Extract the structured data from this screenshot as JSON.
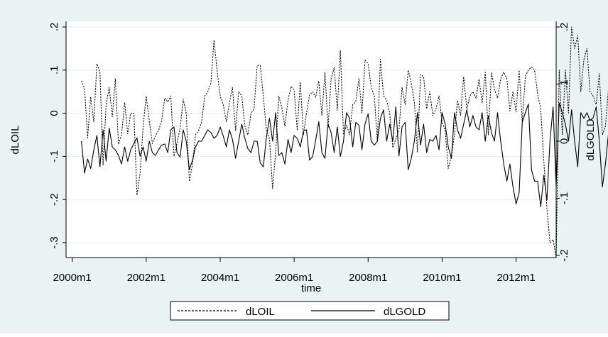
{
  "chart_data": {
    "type": "line",
    "title": "",
    "xlabel": "time",
    "ylabel_left": "dLOIL",
    "ylabel_right": "dLGOLD",
    "x_start": "2000m4",
    "x_end": "2012m9",
    "x_ticks": [
      "2000m1",
      "2002m1",
      "2004m1",
      "2006m1",
      "2008m1",
      "2010m1",
      "2012m1"
    ],
    "y_left_ticks": [
      ".2",
      ".1",
      "0",
      "-.1",
      "-.2",
      "-.3"
    ],
    "y_left_range": [
      -0.33,
      0.2
    ],
    "y_right_ticks": [
      ".2",
      ".1",
      "0",
      "-.1",
      "-.2"
    ],
    "y_right_range": [
      -0.2,
      0.2
    ],
    "grid": true,
    "legend_position": "bottom",
    "series": [
      {
        "name": "dLOIL",
        "axis": "left",
        "style": "dashed",
        "values": [
          0.075,
          0.058,
          -0.057,
          0.038,
          -0.02,
          0.115,
          0.096,
          -0.12,
          0.02,
          0.06,
          -0.008,
          0.08,
          -0.072,
          -0.05,
          0.025,
          -0.048,
          0.0,
          0.0,
          -0.19,
          -0.14,
          -0.03,
          0.04,
          -0.018,
          -0.07,
          -0.053,
          -0.04,
          -0.018,
          0.035,
          0.026,
          0.04,
          -0.1,
          -0.07,
          -0.035,
          0.032,
          0.0,
          -0.158,
          -0.12,
          -0.05,
          -0.04,
          -0.02,
          0.04,
          0.05,
          0.07,
          0.17,
          0.1,
          0.04,
          0.02,
          -0.02,
          0.025,
          0.06,
          -0.04,
          0.05,
          0.04,
          -0.03,
          -0.05,
          0.0,
          0.01,
          0.111,
          0.111,
          0.04,
          -0.04,
          -0.06,
          -0.175,
          -0.09,
          0.04,
          0.013,
          -0.03,
          0.03,
          0.062,
          0.054,
          -0.04,
          0.073,
          -0.05,
          0.0,
          0.042,
          0.05,
          0.037,
          0.075,
          -0.005,
          0.095,
          -0.033,
          0.08,
          0.106,
          0.007,
          0.145,
          -0.05,
          -0.028,
          -0.05,
          0.02,
          0.027,
          0.08,
          0.0,
          0.123,
          0.115,
          0.06,
          0.04,
          -0.065,
          0.125,
          0.04,
          0.03,
          0.0,
          -0.08,
          -0.06,
          -0.04,
          0.06,
          0.02,
          0.1,
          0.07,
          0.025,
          -0.09,
          0.09,
          0.085,
          0.01,
          0.05,
          -0.006,
          0.01,
          0.04,
          -0.02,
          -0.04,
          -0.128,
          -0.1,
          -0.05,
          0.03,
          -0.005,
          0.085,
          0.01,
          0.04,
          0.05,
          0.035,
          0.079,
          0.023,
          0.095,
          -0.05,
          0.095,
          0.055,
          0.035,
          0.08,
          0.095,
          0.08,
          0.005,
          0.05,
          0.003,
          0.1,
          -0.02,
          0.085,
          0.1,
          0.107,
          0.1,
          0.044,
          0.01,
          -0.11,
          -0.22,
          -0.3,
          -0.293,
          -0.335,
          0.1,
          -0.05,
          0.1,
          0.0,
          0.2,
          0.15,
          0.18,
          0.05,
          0.125,
          0.15,
          0.05,
          0.04,
          0.02,
          0.092,
          -0.05,
          -0.03,
          0.06,
          0.05,
          -0.08,
          0.02,
          -0.02,
          0.05,
          0.0,
          0.05,
          0.02,
          0.015,
          0.042,
          -0.02,
          0.025,
          -0.05,
          0.0,
          0.063,
          0.08,
          0.07,
          0.053,
          -0.05,
          -0.06,
          0.0,
          0.013,
          -0.05,
          0.061,
          0.0,
          0.08,
          0.125,
          0.056,
          -0.03,
          0.083,
          0.158,
          0.0,
          -0.05,
          0.08,
          -0.12,
          -0.08,
          -0.063,
          -0.04,
          0.0,
          -0.14,
          -0.13,
          0.01,
          0.063
        ]
      },
      {
        "name": "dLGOLD",
        "axis": "right",
        "style": "solid",
        "values": [
          0.0,
          -0.056,
          -0.031,
          -0.048,
          -0.015,
          0.01,
          -0.045,
          0.02,
          -0.035,
          0.023,
          -0.01,
          -0.015,
          -0.025,
          -0.04,
          -0.01,
          -0.035,
          -0.015,
          -0.004,
          0.006,
          -0.026,
          -0.01,
          -0.035,
          0.0,
          -0.02,
          -0.025,
          -0.015,
          -0.007,
          -0.005,
          -0.02,
          0.02,
          0.025,
          -0.02,
          -0.028,
          0.02,
          0.0,
          -0.05,
          -0.034,
          -0.01,
          0.0,
          0.0,
          0.01,
          0.02,
          0.015,
          0.005,
          0.01,
          0.025,
          0.009,
          -0.01,
          0.02,
          0.003,
          -0.03,
          0.0,
          0.03,
          0.005,
          -0.013,
          -0.02,
          0.0,
          0.0,
          -0.038,
          -0.045,
          0.007,
          0.04,
          0.0,
          0.05,
          -0.025,
          -0.02,
          -0.04,
          0.003,
          -0.02,
          0.01,
          0.005,
          -0.01,
          0.018,
          0.02,
          -0.033,
          -0.027,
          0.002,
          0.034,
          -0.02,
          -0.03,
          0.03,
          0.015,
          -0.02,
          0.025,
          -0.027,
          0.0,
          0.05,
          0.04,
          -0.01,
          0.033,
          0.028,
          -0.015,
          0.03,
          0.048,
          0.0,
          -0.007,
          0.0,
          0.04,
          0.055,
          0.0,
          0.03,
          0.0,
          0.06,
          -0.026,
          0.025,
          0.033,
          -0.05,
          -0.03,
          0.0,
          0.05,
          -0.007,
          0.03,
          -0.02,
          0.003,
          0.0,
          0.01,
          -0.015,
          0.05,
          0.03,
          -0.01,
          -0.03,
          0.05,
          0.02,
          0.005,
          0.03,
          0.055,
          0.025,
          0.045,
          0.025,
          0.02,
          0.05,
          0.0,
          0.045,
          0.015,
          0.0,
          0.05,
          0.0,
          -0.04,
          -0.07,
          -0.04,
          -0.08,
          -0.11,
          -0.09,
          0.033,
          0.05,
          0.065,
          -0.05,
          -0.07,
          -0.07,
          -0.115,
          -0.06,
          -0.103,
          0.0,
          0.06,
          -0.08,
          0.067,
          0.05,
          0.03,
          0.0,
          0.055,
          0.0,
          -0.045,
          0.05,
          0.04,
          0.05,
          0.036,
          0.041,
          0.06,
          0.0,
          -0.08,
          -0.04,
          0.015,
          0.015,
          -0.05,
          -0.015,
          0.025,
          -0.03,
          0.02,
          -0.05,
          0.0,
          0.03,
          -0.05,
          0.014,
          0.015,
          0.0,
          -0.01,
          0.03,
          -0.04,
          0.03,
          0.0,
          0.015,
          0.033,
          -0.04,
          0.019,
          -0.01,
          -0.03,
          0.01,
          0.02,
          0.0,
          -0.02,
          -0.05,
          -0.105,
          0.02,
          -0.03,
          0.0,
          -0.05,
          0.03,
          -0.09,
          -0.113,
          -0.04,
          0.051,
          -0.05,
          0.003,
          0.036,
          -0.04,
          -0.055,
          -0.04,
          -0.08,
          -0.07,
          -0.05,
          0.018,
          -0.05
        ]
      }
    ]
  }
}
